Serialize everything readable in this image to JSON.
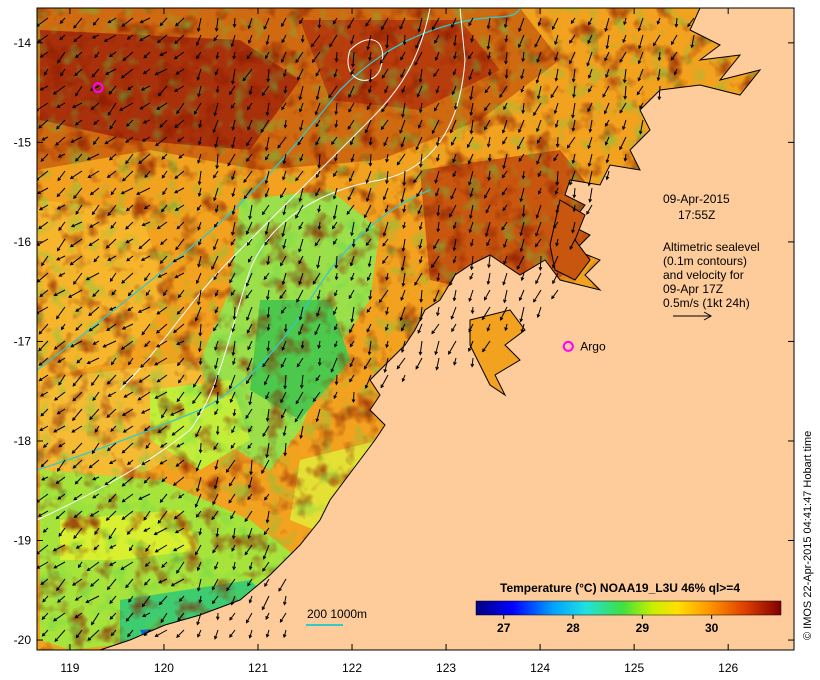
{
  "map": {
    "date": "09-Apr-2015",
    "time": "17:55Z",
    "altimetry_lines": [
      "Altimetric sealevel",
      "(0.1m contours)",
      "and velocity for",
      "09-Apr 17Z",
      "0.5m/s (1kt 24h)"
    ],
    "argo_label": "Argo",
    "isobath_label": "200  1000m",
    "credit": "© IMOS 22-Apr-2015 04:41:47 Hobart time",
    "lon_ticks": [
      "119",
      "120",
      "121",
      "122",
      "123",
      "124",
      "125",
      "126"
    ],
    "lat_ticks": [
      "-14",
      "-15",
      "-16",
      "-17",
      "-18",
      "-19",
      "-20"
    ],
    "lon_range": [
      118.65,
      126.7
    ],
    "lat_range": [
      -20.1,
      -13.65
    ],
    "argo_floats": [
      {
        "lon": 119.3,
        "lat": -14.45,
        "label": ""
      },
      {
        "lon": 124.3,
        "lat": -17.05,
        "label": "Argo"
      }
    ],
    "colorbar": {
      "title": "Temperature (°C) NOAA19_L3U 46% ql>=4",
      "range": [
        26.6,
        31.0
      ],
      "tick_labels": [
        "27",
        "28",
        "29",
        "30"
      ],
      "tick_values": [
        27,
        28,
        29,
        30
      ]
    },
    "colors": {
      "land": "#fdcc9a",
      "argo": "#ff00ff",
      "isobath": "#36c8c8"
    }
  }
}
